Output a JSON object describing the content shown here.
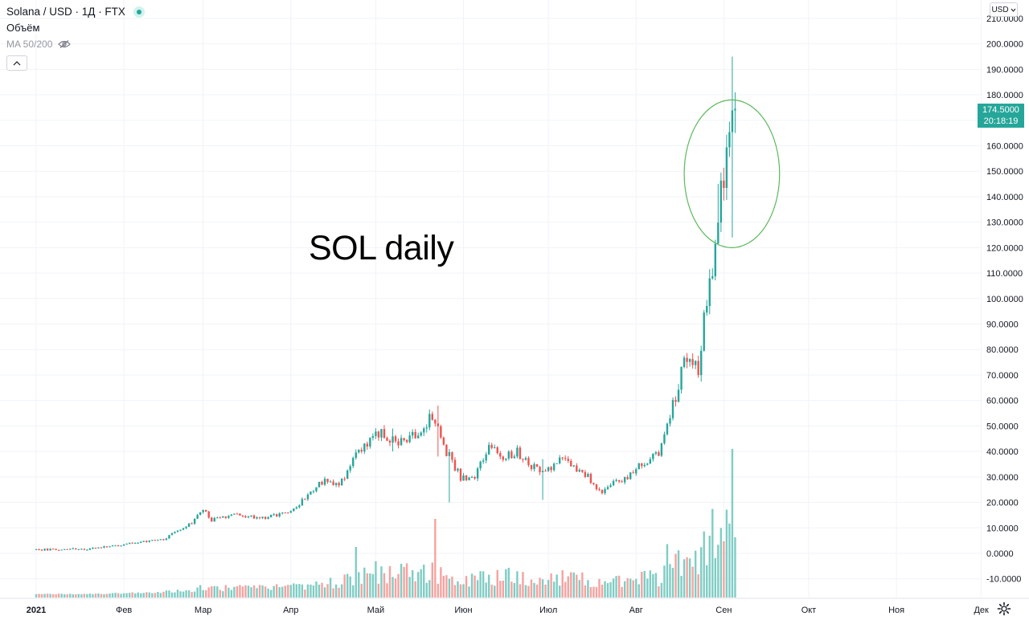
{
  "legend": {
    "symbol": "Solana / USD · 1Д · FTX",
    "volume_label": "Объём",
    "ma_label": "MA 50/200"
  },
  "toolbar": {
    "currency": "USD"
  },
  "annotation": {
    "text": "SOL daily",
    "ellipse_color": "#5cb85c"
  },
  "colors": {
    "up": "#26a69a",
    "down": "#ef5350",
    "vol_up": "#7fcdc4",
    "vol_down": "#f5a3a0",
    "grid": "#f0f3fa",
    "axis_text": "#131722"
  },
  "chart_data": {
    "type": "candlestick",
    "title": "",
    "y_axis": {
      "min": -15,
      "max": 215,
      "ticks": [
        "210.0000",
        "200.0000",
        "190.0000",
        "180.0000",
        "170.0000",
        "160.0000",
        "150.0000",
        "140.0000",
        "130.0000",
        "120.0000",
        "110.0000",
        "100.0000",
        "90.0000",
        "80.0000",
        "70.0000",
        "60.0000",
        "50.0000",
        "40.0000",
        "30.0000",
        "20.0000",
        "10.0000",
        "0.0000",
        "-10.0000"
      ],
      "tick_values": [
        210,
        200,
        190,
        180,
        170,
        160,
        150,
        140,
        130,
        120,
        110,
        100,
        90,
        80,
        70,
        60,
        50,
        40,
        30,
        20,
        10,
        0,
        -10
      ]
    },
    "x_axis": {
      "labels": [
        "2021",
        "Фев",
        "Мар",
        "Апр",
        "Май",
        "Июн",
        "Июл",
        "Авг",
        "Сен",
        "Окт",
        "Ноя",
        "Дек"
      ],
      "label_days": [
        0,
        31,
        59,
        90,
        120,
        151,
        181,
        212,
        243,
        273,
        304,
        334
      ]
    },
    "last_price": {
      "value": "174.5000",
      "countdown": "20:18:19",
      "numeric": 174.5
    },
    "price_keypoints": [
      [
        0,
        1.5
      ],
      [
        20,
        1.8
      ],
      [
        31,
        3.5
      ],
      [
        45,
        5.5
      ],
      [
        50,
        9
      ],
      [
        55,
        12
      ],
      [
        59,
        17
      ],
      [
        62,
        13
      ],
      [
        70,
        15
      ],
      [
        80,
        14
      ],
      [
        90,
        16
      ],
      [
        95,
        22
      ],
      [
        100,
        28
      ],
      [
        108,
        28
      ],
      [
        113,
        38
      ],
      [
        120,
        48
      ],
      [
        128,
        44
      ],
      [
        135,
        46
      ],
      [
        140,
        55
      ],
      [
        145,
        40
      ],
      [
        150,
        30
      ],
      [
        155,
        30
      ],
      [
        160,
        42
      ],
      [
        165,
        38
      ],
      [
        170,
        40
      ],
      [
        175,
        34
      ],
      [
        180,
        33
      ],
      [
        185,
        36
      ],
      [
        188,
        36
      ],
      [
        195,
        30
      ],
      [
        200,
        24
      ],
      [
        205,
        28
      ],
      [
        210,
        31
      ],
      [
        215,
        36
      ],
      [
        220,
        40
      ],
      [
        225,
        58
      ],
      [
        230,
        78
      ],
      [
        234,
        73
      ],
      [
        236,
        92
      ],
      [
        239,
        110
      ],
      [
        241,
        135
      ],
      [
        243,
        145
      ],
      [
        245,
        165
      ],
      [
        247,
        174.5
      ]
    ],
    "ohlc_highlights": [
      {
        "day": 126,
        "high": 49,
        "low": 40
      },
      {
        "day": 142,
        "high": 58,
        "low": 38
      },
      {
        "day": 146,
        "high": 41,
        "low": 20
      },
      {
        "day": 179,
        "high": 37,
        "low": 21
      },
      {
        "day": 241,
        "high": 145,
        "low": 124
      },
      {
        "day": 246,
        "high": 195,
        "low": 124
      },
      {
        "day": 247,
        "high": 181,
        "low": 165
      }
    ],
    "volume": {
      "scale_max": 100
    },
    "volume_spikes": [
      {
        "day": 113,
        "value": 36
      },
      {
        "day": 141,
        "value": 56
      },
      {
        "day": 223,
        "value": 38
      },
      {
        "day": 226,
        "value": 31
      },
      {
        "day": 238,
        "value": 44
      },
      {
        "day": 239,
        "value": 63
      },
      {
        "day": 240,
        "value": 28
      },
      {
        "day": 243,
        "value": 40
      },
      {
        "day": 246,
        "value": 122
      }
    ],
    "annotations": [
      {
        "type": "ellipse",
        "around_day": 245,
        "center_price": 149,
        "x_radius_days": 10.5,
        "price_radius": 29
      },
      {
        "type": "text",
        "text": "SOL daily"
      }
    ]
  }
}
